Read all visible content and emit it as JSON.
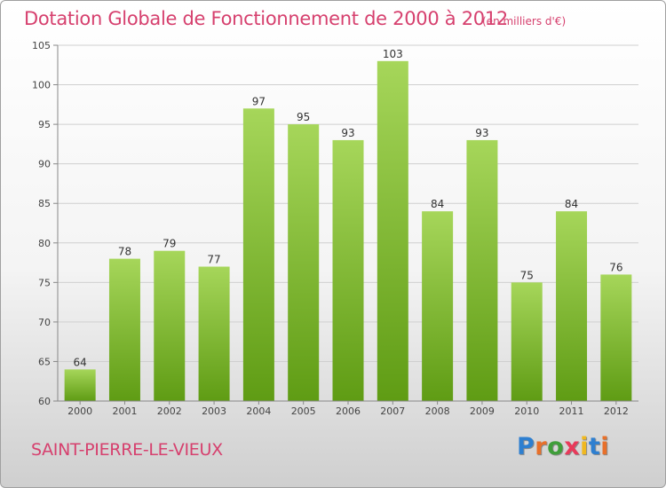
{
  "title": "Dotation Globale de Fonctionnement de 2000 à 2012",
  "subtitle": "(en milliers d'€)",
  "place": "SAINT-PIERRE-LE-VIEUX",
  "logo": {
    "text": "Proxiti",
    "letter_colors": [
      "#2e7fd0",
      "#e8702a",
      "#3f9e3a",
      "#e83a5a",
      "#f0b820",
      "#2e7fd0",
      "#e8702a"
    ]
  },
  "colors": {
    "title": "#d6406e",
    "bar_light": "#a6d65a",
    "bar_dark": "#5f9c14",
    "grid": "#cfcfcf",
    "axis": "#888888"
  },
  "chart_data": {
    "type": "bar",
    "categories": [
      "2000",
      "2001",
      "2002",
      "2003",
      "2004",
      "2005",
      "2006",
      "2007",
      "2008",
      "2009",
      "2010",
      "2011",
      "2012"
    ],
    "values": [
      64,
      78,
      79,
      77,
      97,
      95,
      93,
      103,
      84,
      93,
      75,
      84,
      76
    ],
    "ylim": [
      60,
      105
    ],
    "yticks": [
      60,
      65,
      70,
      75,
      80,
      85,
      90,
      95,
      100,
      105
    ],
    "grid": true,
    "data_labels": true
  }
}
